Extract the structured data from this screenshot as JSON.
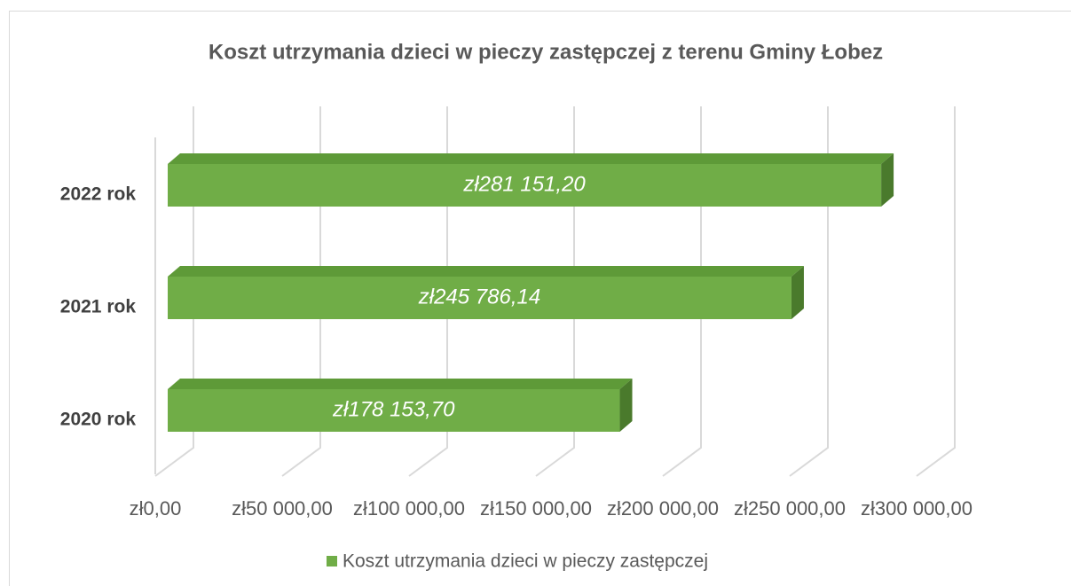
{
  "chart_data": {
    "type": "bar3d_horizontal",
    "title": "Koszt utrzymania dzieci w pieczy zastępczej z terenu Gminy Łobez",
    "categories": [
      "2020 rok",
      "2021 rok",
      "2022 rok"
    ],
    "series": [
      {
        "name": "Koszt utrzymania dzieci w pieczy zastępczej",
        "color": "#70ad47",
        "values": [
          178153.7,
          245786.14,
          281151.2
        ],
        "value_labels": [
          "zł178 153,70",
          "zł245 786,14",
          "zł281 151,20"
        ]
      }
    ],
    "xlim": [
      0,
      300000
    ],
    "xticks": [
      {
        "value": 0,
        "label": "zł0,00"
      },
      {
        "value": 50000,
        "label": "zł50 000,00"
      },
      {
        "value": 100000,
        "label": "zł100 000,00"
      },
      {
        "value": 150000,
        "label": "zł150 000,00"
      },
      {
        "value": 200000,
        "label": "zł200 000,00"
      },
      {
        "value": 250000,
        "label": "zł250 000,00"
      },
      {
        "value": 300000,
        "label": "zł300 000,00"
      }
    ],
    "grid": true,
    "legend": "bottom"
  }
}
